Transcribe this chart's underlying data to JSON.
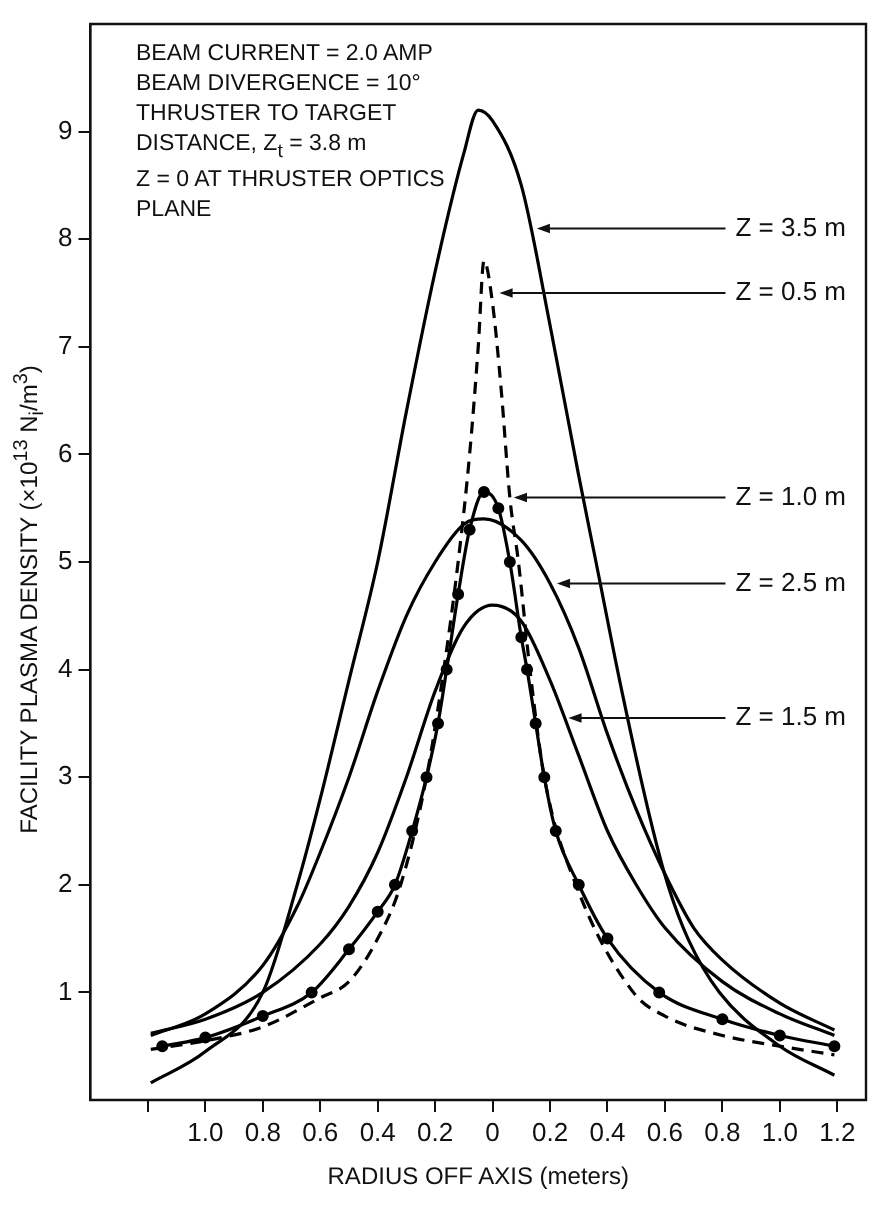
{
  "chart_data": {
    "type": "line",
    "xlabel": "RADIUS OFF AXIS (meters)",
    "ylabel": "FACILITY PLASMA DENSITY (×10$^{13}$ N$_{i}$/m$^{3}$)",
    "xlim": [
      -1.4,
      1.3
    ],
    "ylim": [
      0,
      10
    ],
    "xticks": [
      {
        "value": -1.2,
        "label": null
      },
      {
        "value": -1.0,
        "label": "1.0"
      },
      {
        "value": -0.8,
        "label": "0.8"
      },
      {
        "value": -0.6,
        "label": "0.6"
      },
      {
        "value": -0.4,
        "label": "0.4"
      },
      {
        "value": -0.2,
        "label": "0.2"
      },
      0,
      0.2,
      0.4,
      0.6,
      0.8,
      {
        "value": 1.0,
        "label": "1.0"
      },
      1.2
    ],
    "yticks": [
      1,
      2,
      3,
      4,
      5,
      6,
      7,
      8,
      9
    ],
    "grid": false,
    "legend": false,
    "series": [
      {
        "color": "#000000",
        "line_style": "solid",
        "marker": "none",
        "x": [
          -1.19,
          -1.0,
          -0.8,
          -0.68,
          -0.6,
          -0.5,
          -0.4,
          -0.3,
          -0.2,
          -0.1,
          -0.05,
          0,
          0.1,
          0.2,
          0.3,
          0.36,
          0.45,
          0.55,
          0.61,
          0.68,
          0.79,
          1.0,
          1.19
        ],
        "values": [
          0.16,
          0.45,
          1.0,
          2.0,
          2.8,
          3.9,
          5.0,
          6.4,
          7.7,
          8.8,
          9.2,
          9.1,
          8.5,
          7.2,
          5.8,
          5.0,
          3.8,
          2.6,
          2.0,
          1.5,
          1.0,
          0.5,
          0.23
        ]
      },
      {
        "color": "#000000",
        "line_style": "dashed",
        "marker": "none",
        "x": [
          -1.19,
          -1.0,
          -0.8,
          -0.6,
          -0.5,
          -0.4,
          -0.32,
          -0.23,
          -0.17,
          -0.12,
          -0.08,
          -0.05,
          -0.03,
          0,
          0.03,
          0.06,
          0.09,
          0.13,
          0.18,
          0.29,
          0.49,
          0.6,
          0.8,
          1.0,
          1.19
        ],
        "values": [
          0.47,
          0.55,
          0.68,
          0.95,
          1.1,
          1.5,
          2.0,
          3.0,
          4.0,
          5.0,
          6.0,
          7.0,
          7.8,
          7.4,
          6.6,
          5.6,
          5.0,
          4.0,
          3.0,
          2.0,
          1.0,
          0.78,
          0.6,
          0.5,
          0.42
        ]
      },
      {
        "color": "#000000",
        "line_style": "solid",
        "marker": "circle",
        "x": [
          -1.15,
          -1.0,
          -0.8,
          -0.63,
          -0.5,
          -0.4,
          -0.34,
          -0.28,
          -0.23,
          -0.19,
          -0.16,
          -0.12,
          -0.08,
          -0.03,
          0.02,
          0.06,
          0.1,
          0.12,
          0.15,
          0.18,
          0.22,
          0.3,
          0.4,
          0.58,
          0.8,
          1.0,
          1.19
        ],
        "values": [
          0.5,
          0.58,
          0.78,
          1.0,
          1.4,
          1.75,
          2.0,
          2.5,
          3.0,
          3.5,
          4.0,
          4.7,
          5.3,
          5.65,
          5.5,
          5.0,
          4.3,
          4.0,
          3.5,
          3.0,
          2.5,
          2.0,
          1.5,
          1.0,
          0.75,
          0.6,
          0.5
        ]
      },
      {
        "color": "#000000",
        "line_style": "solid",
        "marker": "none",
        "x": [
          -1.19,
          -1.0,
          -0.8,
          -0.68,
          -0.6,
          -0.5,
          -0.4,
          -0.3,
          -0.2,
          -0.1,
          -0.03,
          0.1,
          0.2,
          0.3,
          0.4,
          0.5,
          0.6,
          0.7,
          0.8,
          1.0,
          1.19
        ],
        "values": [
          0.6,
          0.8,
          1.25,
          1.8,
          2.3,
          3.0,
          3.8,
          4.5,
          5.0,
          5.35,
          5.4,
          5.2,
          4.8,
          4.2,
          3.4,
          2.7,
          2.1,
          1.6,
          1.3,
          0.9,
          0.65
        ]
      },
      {
        "color": "#000000",
        "line_style": "solid",
        "marker": "none",
        "x": [
          -1.19,
          -1.0,
          -0.8,
          -0.6,
          -0.5,
          -0.4,
          -0.3,
          -0.2,
          -0.1,
          0,
          0.1,
          0.2,
          0.3,
          0.4,
          0.5,
          0.6,
          0.8,
          1.0,
          1.19
        ],
        "values": [
          0.62,
          0.75,
          1.0,
          1.45,
          1.8,
          2.3,
          3.0,
          3.8,
          4.4,
          4.6,
          4.45,
          3.9,
          3.2,
          2.5,
          2.0,
          1.6,
          1.1,
          0.8,
          0.6
        ]
      }
    ],
    "annotations": [
      "BEAM CURRENT = 2.0 AMP",
      "BEAM DIVERGENCE = 10°",
      "THRUSTER TO TARGET DISTANCE, Z$_{t}$ = 3.8 m",
      "Z = 0 AT THRUSTER OPTICS PLANE",
      {
        "text": "Z = 3.5 m",
        "x": 0.14,
        "y": 8.1
      },
      {
        "text": "Z = 0.5 m",
        "x": 0.01,
        "y": 7.5
      },
      {
        "text": "Z = 1.0 m",
        "x": 0.06,
        "y": 5.6
      },
      {
        "text": "Z = 2.5 m",
        "x": 0.21,
        "y": 4.8
      },
      {
        "text": "Z = 1.5 m",
        "x": 0.25,
        "y": 3.55
      }
    ]
  }
}
